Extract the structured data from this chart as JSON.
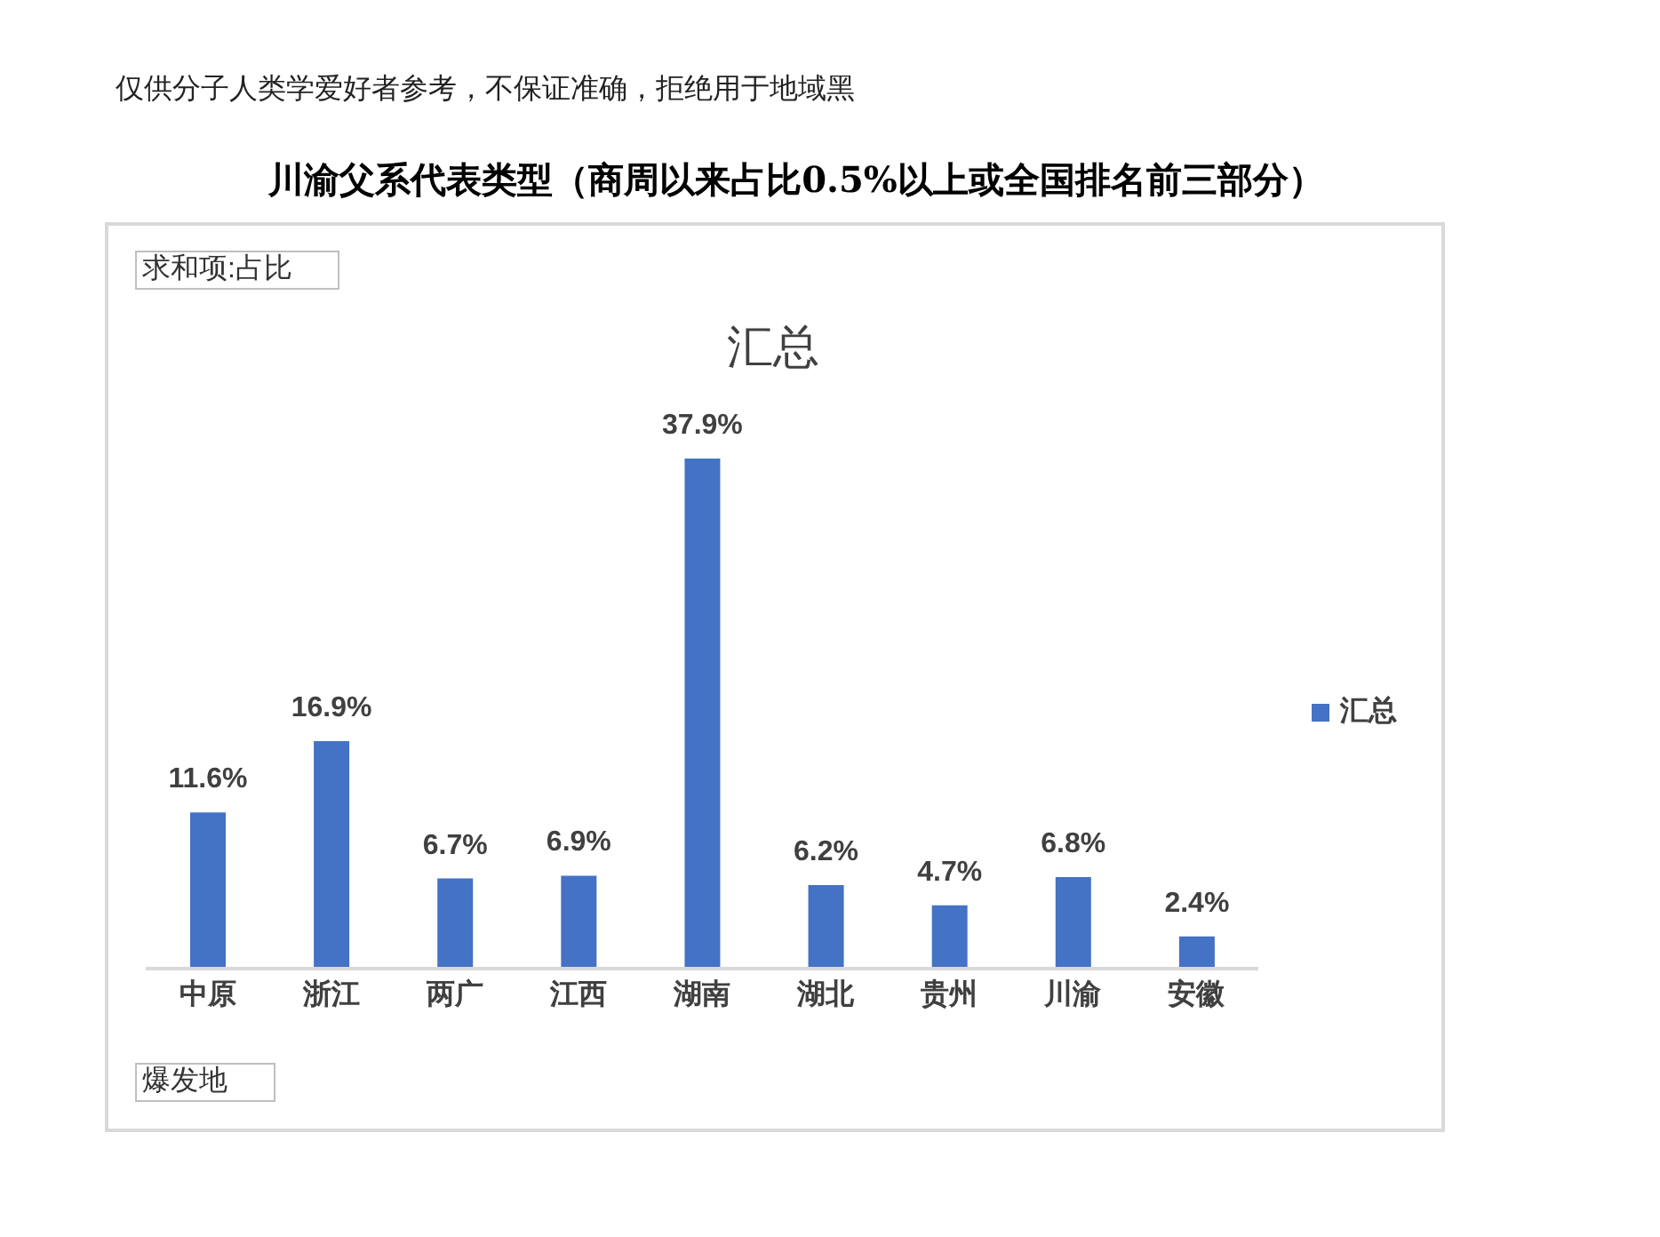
{
  "chart_data": {
    "type": "bar",
    "title": "川渝父系代表类型（商周以来占比0.5%以上或全国排名前三部分）",
    "subtitle": "汇总",
    "xlabel": "爆发地",
    "annotations": [
      "仅供分子人类学爱好者参考，不保证准确，拒绝用于地域黑",
      "求和项:占比"
    ],
    "categories": [
      "中原",
      "浙江",
      "两广",
      "江西",
      "湖南",
      "湖北",
      "贵州",
      "川渝",
      "安徽"
    ],
    "series": [
      {
        "name": "汇总",
        "color": "#4472c4",
        "values": [
          11.6,
          16.9,
          6.7,
          6.9,
          37.9,
          6.2,
          4.7,
          6.8,
          2.4
        ],
        "value_labels": [
          "11.6%",
          "16.9%",
          "6.7%",
          "6.9%",
          "37.9%",
          "6.2%",
          "4.7%",
          "6.8%",
          "2.4%"
        ]
      }
    ],
    "legend": "right"
  }
}
